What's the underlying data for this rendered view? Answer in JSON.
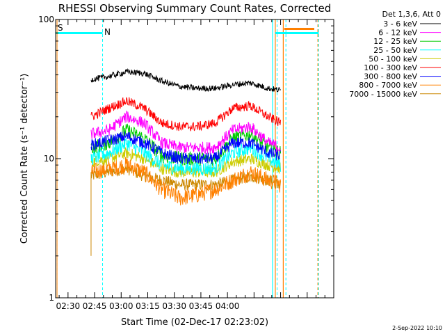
{
  "chart_data": {
    "type": "line",
    "title": "RHESSI Observing Summary Count Rates, Corrected",
    "xlabel": "Start Time (02-Dec-17 02:23:02)",
    "ylabel": "Corrected Count Rate (s⁻¹ detector⁻¹)",
    "y_scale": "log",
    "ylim": [
      1,
      100
    ],
    "x_range_minutes": [
      0,
      157
    ],
    "x_ticks": [
      "02:30",
      "02:45",
      "03:00",
      "03:15",
      "03:30",
      "03:45",
      "04:00"
    ],
    "y_ticks": [
      "1",
      "10",
      "100"
    ],
    "grid": false,
    "legend_title": "Det 1,3,6, Att 0",
    "legend_position": "right",
    "series": [
      {
        "name": "3 - 6 keV",
        "color": "#000000",
        "t": [
          20,
          30,
          40,
          50,
          60,
          70,
          80,
          90,
          100,
          110,
          120,
          127
        ],
        "v": [
          37,
          39,
          42,
          41,
          36,
          33,
          32,
          32,
          34,
          35,
          32,
          31
        ]
      },
      {
        "name": "6 - 12 keV",
        "color": "#ff00ff",
        "t": [
          20,
          30,
          40,
          50,
          60,
          70,
          80,
          90,
          100,
          110,
          120,
          127
        ],
        "v": [
          15,
          16,
          20,
          18,
          13,
          12,
          12,
          12,
          16,
          17,
          13,
          12
        ]
      },
      {
        "name": "12 - 25 keV",
        "color": "#00cc00",
        "t": [
          20,
          30,
          40,
          50,
          60,
          70,
          80,
          90,
          100,
          110,
          120,
          127
        ],
        "v": [
          12,
          13,
          16,
          14,
          10.5,
          10,
          10,
          10,
          14,
          15,
          12,
          11
        ]
      },
      {
        "name": "25 - 50 keV",
        "color": "#00ffff",
        "t": [
          20,
          30,
          40,
          50,
          60,
          70,
          80,
          90,
          100,
          110,
          120,
          127
        ],
        "v": [
          10,
          11,
          13,
          11,
          9,
          8.5,
          8.5,
          8.5,
          11,
          12,
          10,
          9
        ]
      },
      {
        "name": "50 - 100 keV",
        "color": "#cccc00",
        "t": [
          20,
          30,
          40,
          50,
          60,
          70,
          80,
          90,
          100,
          110,
          120,
          127
        ],
        "v": [
          9.5,
          10,
          11,
          10,
          8.5,
          8,
          8,
          8,
          9.5,
          10,
          9,
          8.5
        ]
      },
      {
        "name": "100 - 300 keV",
        "color": "#ff0000",
        "t": [
          20,
          30,
          40,
          50,
          60,
          70,
          80,
          90,
          100,
          110,
          120,
          127
        ],
        "v": [
          20,
          23,
          26,
          23,
          18,
          17,
          17,
          18,
          23,
          24,
          20,
          18
        ]
      },
      {
        "name": "300 - 800 keV",
        "color": "#0000ff",
        "t": [
          20,
          30,
          40,
          50,
          60,
          70,
          80,
          90,
          100,
          110,
          120,
          127
        ],
        "v": [
          12.5,
          13.5,
          14.5,
          13,
          11,
          10,
          10,
          10,
          13,
          13,
          11,
          10.5
        ]
      },
      {
        "name": "800 - 7000 keV",
        "color": "#ff8000",
        "t": [
          20,
          30,
          40,
          50,
          60,
          70,
          80,
          90,
          100,
          110,
          120,
          127
        ],
        "v": [
          8,
          8.5,
          9,
          8,
          6,
          5.2,
          5.5,
          6,
          7,
          8,
          7,
          6.5
        ]
      },
      {
        "name": "7000 - 15000 keV",
        "color": "#cc8800",
        "t": [
          20,
          30,
          40,
          50,
          60,
          70,
          80,
          90,
          100,
          110,
          120,
          127
        ],
        "v": [
          7.5,
          8,
          8.5,
          7.5,
          7,
          6.5,
          6.5,
          6.5,
          7,
          7.5,
          7,
          6.5
        ]
      }
    ],
    "annotations": [
      {
        "text": "S",
        "color": "#ff8000"
      },
      {
        "text": "N",
        "color": "#00ffff"
      }
    ]
  },
  "footer": {
    "date": "2-Sep-2022 10:10"
  }
}
